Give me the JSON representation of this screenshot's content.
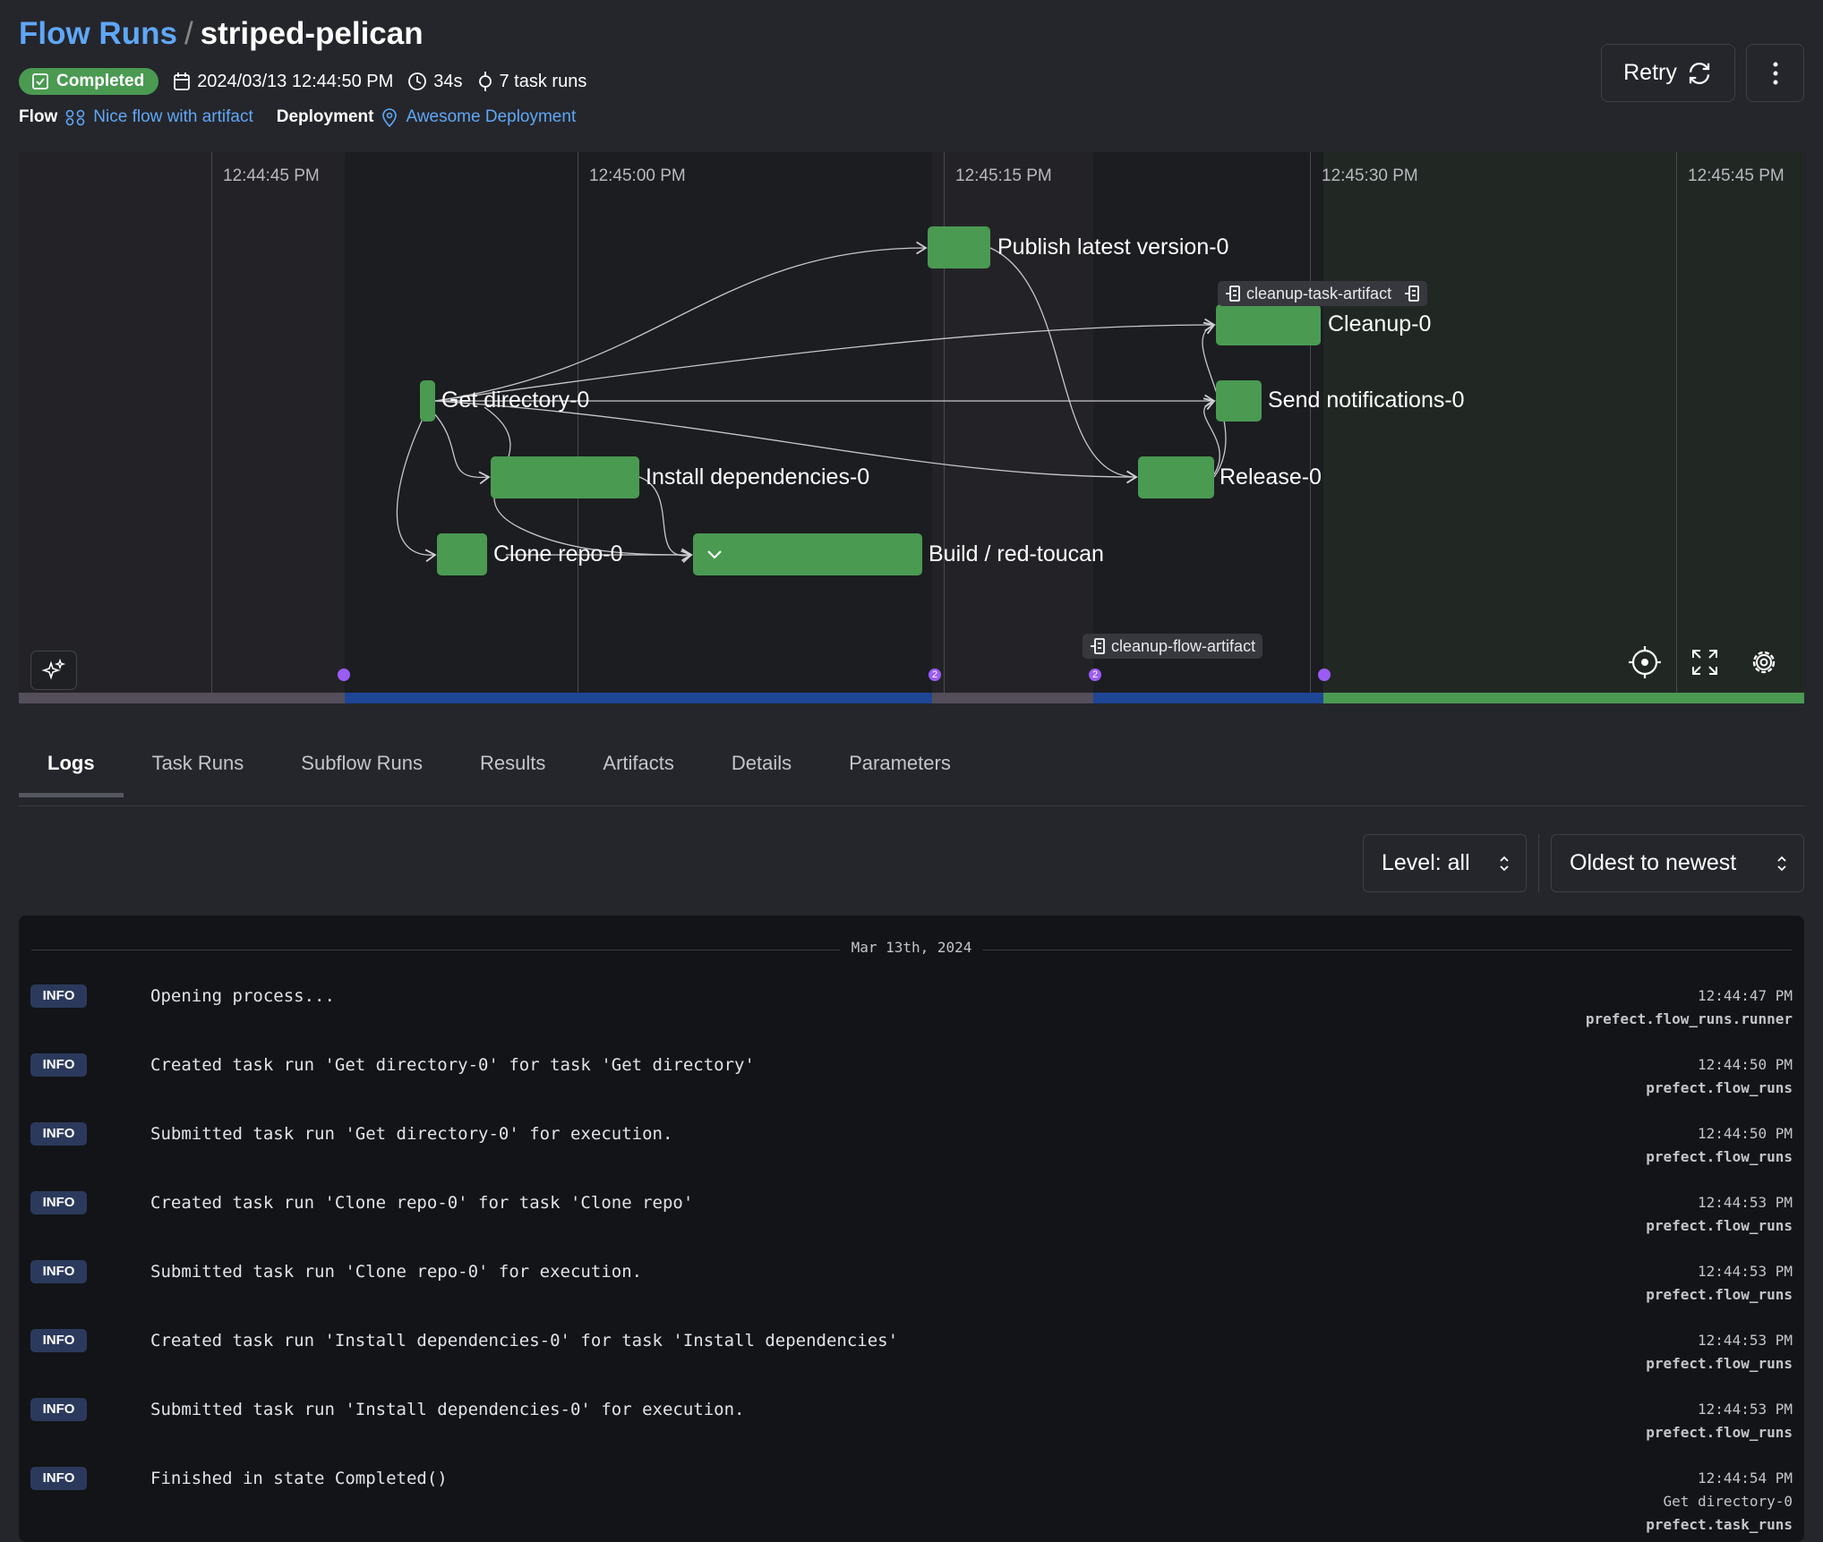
{
  "header": {
    "breadcrumb_root": "Flow Runs",
    "separator": "/",
    "run_name": "striped-pelican",
    "state": "Completed",
    "start_time": "2024/03/13 12:44:50 PM",
    "duration": "34s",
    "task_runs": "7 task runs",
    "flow_label": "Flow",
    "flow_name": "Nice flow with artifact",
    "deployment_label": "Deployment",
    "deployment_name": "Awesome Deployment",
    "retry_label": "Retry"
  },
  "graph": {
    "ticks": [
      "12:44:45 PM",
      "12:45:00 PM",
      "12:45:15 PM",
      "12:45:30 PM",
      "12:45:45 PM"
    ],
    "nodes": [
      {
        "label": "Publish latest version-0"
      },
      {
        "label": "Cleanup-0"
      },
      {
        "label": "Send notifications-0"
      },
      {
        "label": "Get directory-0"
      },
      {
        "label": "Install dependencies-0"
      },
      {
        "label": "Release-0"
      },
      {
        "label": "Clone repo-0"
      },
      {
        "label": "Build / red-toucan"
      }
    ],
    "artifacts": [
      "cleanup-task-artifact",
      "cleanup-flow-artifact"
    ],
    "event_counts": [
      "",
      "2",
      "2",
      ""
    ],
    "state_segments": [
      "pending",
      "running",
      "pending",
      "running",
      "completed"
    ]
  },
  "colors": {
    "accent": "#5fa7f7",
    "completed": "#4a9a52",
    "running": "#1e4596",
    "pending": "#544f5a",
    "event": "#9b5cf2"
  },
  "tabs": [
    "Logs",
    "Task Runs",
    "Subflow Runs",
    "Results",
    "Artifacts",
    "Details",
    "Parameters"
  ],
  "filters": {
    "level": "Level: all",
    "sort": "Oldest to newest"
  },
  "logs": {
    "date": "Mar 13th, 2024",
    "rows": [
      {
        "level": "INFO",
        "message": "Opening process...",
        "time": "12:44:47 PM",
        "source": "prefect.flow_runs.runner"
      },
      {
        "level": "INFO",
        "message": "Created task run 'Get directory-0' for task 'Get directory'",
        "time": "12:44:50 PM",
        "source": "prefect.flow_runs"
      },
      {
        "level": "INFO",
        "message": "Submitted task run 'Get directory-0' for execution.",
        "time": "12:44:50 PM",
        "source": "prefect.flow_runs"
      },
      {
        "level": "INFO",
        "message": "Created task run 'Clone repo-0' for task 'Clone repo'",
        "time": "12:44:53 PM",
        "source": "prefect.flow_runs"
      },
      {
        "level": "INFO",
        "message": "Submitted task run 'Clone repo-0' for execution.",
        "time": "12:44:53 PM",
        "source": "prefect.flow_runs"
      },
      {
        "level": "INFO",
        "message": "Created task run 'Install dependencies-0' for task 'Install dependencies'",
        "time": "12:44:53 PM",
        "source": "prefect.flow_runs"
      },
      {
        "level": "INFO",
        "message": "Submitted task run 'Install dependencies-0' for execution.",
        "time": "12:44:53 PM",
        "source": "prefect.flow_runs"
      },
      {
        "level": "INFO",
        "message": "Finished in state Completed()",
        "time": "12:44:54 PM",
        "task": "Get directory-0",
        "source": "prefect.task_runs"
      }
    ]
  }
}
